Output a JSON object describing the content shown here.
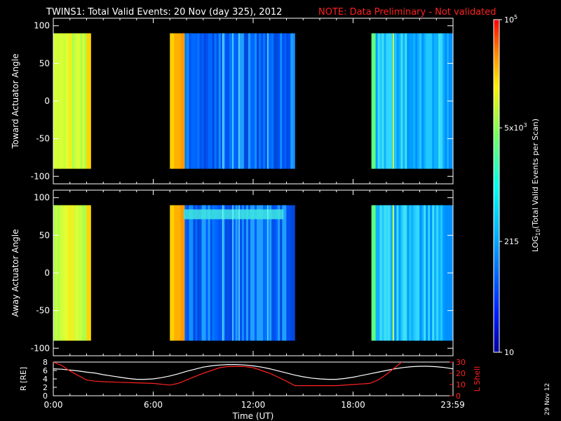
{
  "header": {
    "title": "TWINS1: Total Valid Events: 20 Nov (day 325), 2012",
    "note": "NOTE: Data Preliminary - Not validated",
    "note_color": "#ff2020"
  },
  "stamp": "29 Nov 12",
  "chart_data": [
    {
      "type": "heatmap",
      "name": "toward-panel",
      "ylabel": "Toward Actuator Angle",
      "ylim": [
        -110,
        110
      ],
      "yticks": [
        "100",
        "50",
        "0",
        "-50",
        "-100"
      ],
      "xlim": [
        0,
        24
      ],
      "data_ylim": [
        -90,
        90
      ],
      "intervals": [
        {
          "start": 0.0,
          "end": 2.25,
          "level": "high"
        },
        {
          "start": 7.0,
          "end": 14.5,
          "level": "mixed"
        },
        {
          "start": 19.1,
          "end": 24.0,
          "level": "medium"
        }
      ]
    },
    {
      "type": "heatmap",
      "name": "away-panel",
      "ylabel": "Away Actuator Angle",
      "ylim": [
        -110,
        110
      ],
      "yticks": [
        "100",
        "50",
        "0",
        "-50",
        "-100"
      ],
      "xlim": [
        0,
        24
      ],
      "data_ylim": [
        -90,
        90
      ],
      "intervals": [
        {
          "start": 0.0,
          "end": 2.25,
          "level": "high"
        },
        {
          "start": 7.0,
          "end": 14.5,
          "level": "mixed"
        },
        {
          "start": 19.1,
          "end": 24.0,
          "level": "medium"
        }
      ]
    },
    {
      "type": "line",
      "name": "orbit-panel",
      "xlabel": "Time (UT)",
      "xticks": [
        "0:00",
        "6:00",
        "12:00",
        "18:00",
        "23:59"
      ],
      "xtick_values": [
        0,
        6,
        12,
        18,
        23.98
      ],
      "left_axis": {
        "label": "R [RE]",
        "ticks": [
          "8",
          "6",
          "4",
          "2",
          "0"
        ],
        "ylim": [
          0,
          8
        ]
      },
      "right_axis": {
        "label": "L Shell",
        "ticks": [
          "30",
          "20",
          "10",
          "0"
        ],
        "ylim": [
          0,
          30
        ],
        "color": "#ff2020"
      },
      "series": [
        {
          "axis": "left",
          "color": "#ffffff",
          "x": [
            0,
            0.5,
            1,
            1.5,
            2,
            2.5,
            3,
            3.5,
            4,
            4.5,
            5,
            5.5,
            6,
            6.5,
            7,
            7.5,
            8,
            8.5,
            9,
            9.5,
            10,
            10.5,
            11,
            11.5,
            12,
            12.5,
            13,
            13.5,
            14,
            14.5,
            15,
            15.5,
            16,
            16.5,
            17,
            17.5,
            18,
            18.5,
            19,
            19.5,
            20,
            20.5,
            21,
            21.5,
            22,
            22.5,
            23,
            23.5,
            24
          ],
          "values": [
            6.4,
            6.3,
            6.1,
            5.9,
            5.6,
            5.4,
            5.0,
            4.7,
            4.4,
            4.1,
            3.9,
            3.9,
            4.0,
            4.3,
            4.7,
            5.2,
            5.8,
            6.3,
            6.8,
            7.1,
            7.3,
            7.4,
            7.4,
            7.3,
            7.1,
            6.8,
            6.4,
            5.9,
            5.4,
            4.9,
            4.5,
            4.2,
            4.0,
            3.9,
            3.9,
            4.1,
            4.4,
            4.8,
            5.2,
            5.6,
            6.0,
            6.4,
            6.7,
            6.9,
            7.0,
            7.0,
            6.9,
            6.7,
            6.4
          ]
        },
        {
          "axis": "right",
          "color": "#ff2020",
          "x": [
            0,
            0.5,
            1,
            1.5,
            2,
            2.5,
            3,
            4,
            5,
            6,
            7,
            7.5,
            8,
            9,
            10,
            10.5,
            11,
            11.5,
            12,
            13,
            14,
            14.5,
            15,
            16,
            17,
            18,
            19,
            19.5,
            20,
            20.5,
            21
          ],
          "values": [
            30,
            27,
            22,
            18,
            14,
            13,
            12.5,
            12,
            11.5,
            11,
            9.5,
            11,
            14,
            20,
            25,
            26,
            26,
            26,
            25,
            20,
            13,
            9,
            9,
            9,
            9,
            10,
            11,
            14,
            19,
            25,
            31
          ]
        }
      ]
    },
    {
      "type": "colorbar",
      "name": "colorbar",
      "scale": "log",
      "ylim": [
        10,
        100000
      ],
      "ticks": [
        {
          "value": 100000,
          "label_base": "10",
          "label_exp": "5"
        },
        {
          "value": 5000,
          "label_base": "5x10",
          "label_exp": "3"
        },
        {
          "value": 215,
          "label_base": "215",
          "label_exp": ""
        },
        {
          "value": 10,
          "label_base": "10",
          "label_exp": ""
        }
      ],
      "label_pre": "LOG",
      "label_sub": "10",
      "label_post": "(Total Valid Events per Scan)"
    }
  ]
}
